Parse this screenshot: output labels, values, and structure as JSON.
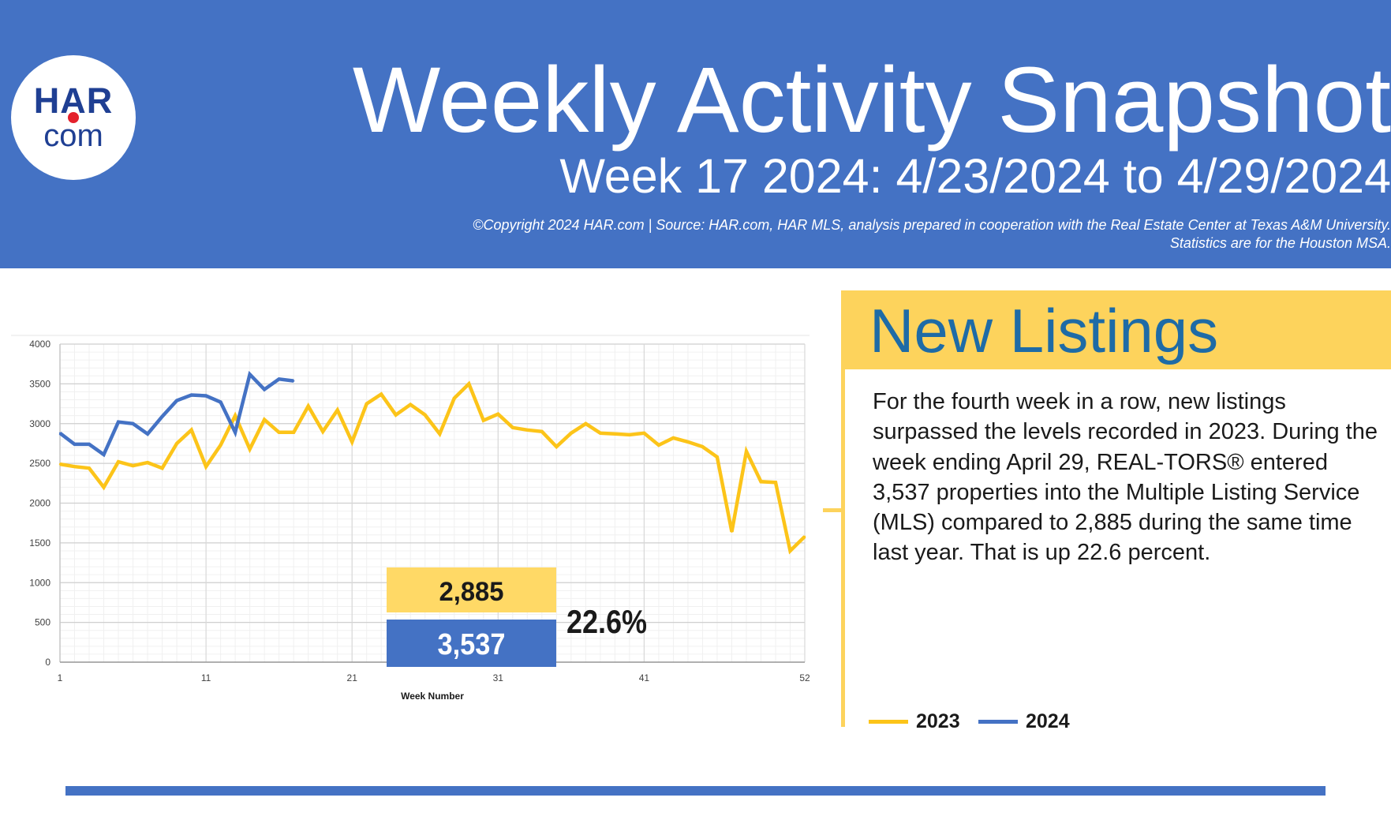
{
  "header": {
    "logo_top": "HAR",
    "logo_bottom": "com",
    "title": "Weekly Activity Snapshot",
    "subtitle": "Week 17 2024: 4/23/2024 to 4/29/2024",
    "copyright_line1": "©Copyright 2024 HAR.com  |  Source: HAR.com, HAR MLS, analysis prepared in cooperation with the Real Estate Center at Texas A&M University.",
    "copyright_line2": "Statistics are for the Houston MSA.",
    "background_color": "#4472c4"
  },
  "chart_data": {
    "type": "line",
    "xlabel": "Week Number",
    "ylabel": "",
    "xlim": [
      1,
      52
    ],
    "ylim": [
      0,
      4000
    ],
    "x_ticks": [
      1,
      11,
      21,
      31,
      41,
      52
    ],
    "y_ticks": [
      0,
      500,
      1000,
      1500,
      2000,
      2500,
      3000,
      3500,
      4000
    ],
    "grid": true,
    "legend_position": "bottom-right",
    "series": [
      {
        "name": "2023",
        "color": "#fcc419",
        "x": [
          1,
          2,
          3,
          4,
          5,
          6,
          7,
          8,
          9,
          10,
          11,
          12,
          13,
          14,
          15,
          16,
          17,
          18,
          19,
          20,
          21,
          22,
          23,
          24,
          25,
          26,
          27,
          28,
          29,
          30,
          31,
          32,
          33,
          34,
          35,
          36,
          37,
          38,
          39,
          40,
          41,
          42,
          43,
          44,
          45,
          46,
          47,
          48,
          49,
          50,
          51,
          52
        ],
        "values": [
          2490,
          2460,
          2440,
          2200,
          2520,
          2470,
          2510,
          2440,
          2750,
          2920,
          2460,
          2730,
          3100,
          2680,
          3050,
          2890,
          2890,
          3220,
          2900,
          3170,
          2770,
          3250,
          3370,
          3110,
          3240,
          3110,
          2870,
          3320,
          3500,
          3040,
          3120,
          2950,
          2920,
          2900,
          2710,
          2880,
          3000,
          2880,
          2870,
          2860,
          2880,
          2730,
          2820,
          2770,
          2710,
          2580,
          1640,
          2650,
          2270,
          2260,
          1400,
          1580
        ]
      },
      {
        "name": "2024",
        "color": "#4472c4",
        "x": [
          1,
          2,
          3,
          4,
          5,
          6,
          7,
          8,
          9,
          10,
          11,
          12,
          13,
          14,
          15,
          16,
          17
        ],
        "values": [
          2880,
          2740,
          2740,
          2610,
          3020,
          3000,
          2870,
          3090,
          3290,
          3360,
          3350,
          3270,
          2890,
          3620,
          3430,
          3560,
          3537
        ]
      }
    ],
    "callouts": {
      "value_2023": "2,885",
      "value_2024": "3,537",
      "pct_change": "22.6%",
      "color_2023": "#ffd966",
      "color_2024": "#4472c4"
    }
  },
  "panel": {
    "title": "New Listings",
    "body": "For the fourth week in a row, new listings surpassed the levels recorded in 2023. During the week ending April 29, REAL-TORS® entered 3,537 properties into the Multiple Listing Service (MLS) compared to 2,885 during the same time last year. That is up 22.6 percent.",
    "accent_color": "#fdd35c",
    "title_color": "#1e6ba6"
  },
  "legend": [
    {
      "label": "2023",
      "color": "#fcc419"
    },
    {
      "label": "2024",
      "color": "#4472c4"
    }
  ]
}
